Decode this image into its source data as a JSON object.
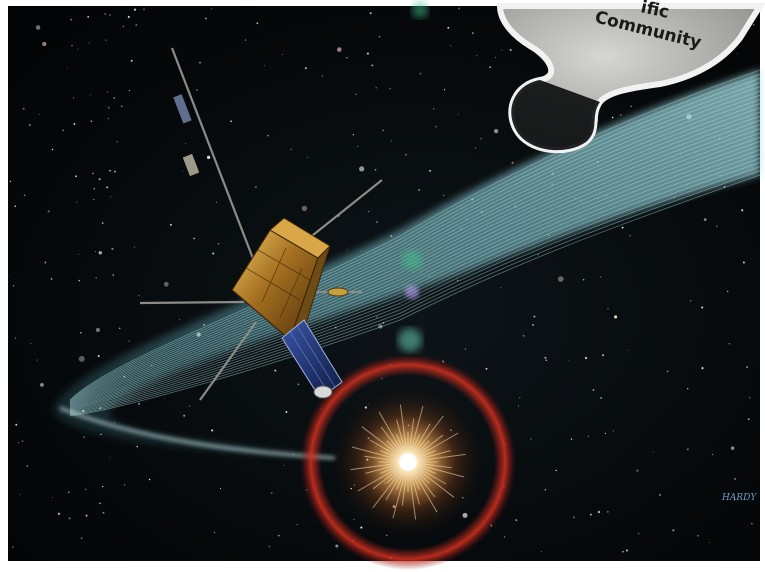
{
  "puzzle_piece": {
    "line1": "ific",
    "line2": "Community"
  },
  "signature": "HARDY",
  "colors": {
    "space": "#050708",
    "comet_tail": "#5fb6c4",
    "sun_core": "#fff4d6",
    "sun_glow": "#ff9a3c",
    "halo_ring": "#c8281e",
    "spacecraft_foil": "#b8862e",
    "solar_panel": "#1f2f6a",
    "puzzle_fill": "#b9b9b6",
    "puzzle_border": "#f2f2f2"
  }
}
